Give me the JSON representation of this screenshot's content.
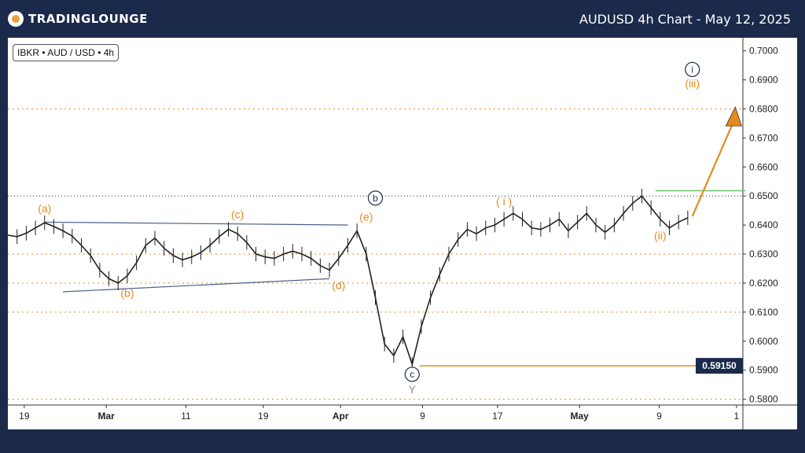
{
  "header": {
    "logo_text": "TRADINGLOUNGE",
    "title": "AUDUSD 4h Chart - May 12, 2025"
  },
  "symbol_badge": "IBKR • AUD / USD • 4h",
  "colors": {
    "background": "#1b2a4a",
    "orange": "#e8891c",
    "navy": "#1b2a4a",
    "trendline": "#4a5f8a",
    "green_line": "#6dbf6d",
    "price": "#222222"
  },
  "chart_data": {
    "type": "line",
    "xlabel": "",
    "ylabel": "",
    "x_ticks": [
      "19",
      "Mar",
      "11",
      "19",
      "Apr",
      "9",
      "17",
      "May",
      "9",
      "1"
    ],
    "y_ticks": [
      "0.7000",
      "0.6900",
      "0.6800",
      "0.6700",
      "0.6600",
      "0.6500",
      "0.6400",
      "0.6300",
      "0.6200",
      "0.6100",
      "0.6000",
      "0.5900",
      "0.5800"
    ],
    "ylim": [
      0.578,
      0.7045
    ],
    "price_label": "0.59150",
    "price_level": 0.5915,
    "series": [
      {
        "values": [
          [
            0,
            0.6365
          ],
          [
            1,
            0.636
          ],
          [
            2,
            0.6372
          ],
          [
            3,
            0.639
          ],
          [
            4,
            0.6408
          ],
          [
            5,
            0.6395
          ],
          [
            6,
            0.638
          ],
          [
            7,
            0.6362
          ],
          [
            8,
            0.633
          ],
          [
            9,
            0.6295
          ],
          [
            10,
            0.6245
          ],
          [
            11,
            0.6215
          ],
          [
            12,
            0.62
          ],
          [
            13,
            0.6225
          ],
          [
            14,
            0.627
          ],
          [
            15,
            0.633
          ],
          [
            16,
            0.6355
          ],
          [
            17,
            0.632
          ],
          [
            18,
            0.6295
          ],
          [
            19,
            0.628
          ],
          [
            20,
            0.629
          ],
          [
            21,
            0.6305
          ],
          [
            22,
            0.633
          ],
          [
            23,
            0.636
          ],
          [
            24,
            0.6385
          ],
          [
            25,
            0.637
          ],
          [
            26,
            0.634
          ],
          [
            27,
            0.63
          ],
          [
            28,
            0.629
          ],
          [
            29,
            0.6285
          ],
          [
            30,
            0.63
          ],
          [
            31,
            0.631
          ],
          [
            32,
            0.63
          ],
          [
            33,
            0.6285
          ],
          [
            34,
            0.626
          ],
          [
            35,
            0.6245
          ],
          [
            36,
            0.6285
          ],
          [
            37,
            0.633
          ],
          [
            38,
            0.638
          ],
          [
            39,
            0.63
          ],
          [
            40,
            0.615
          ],
          [
            41,
            0.599
          ],
          [
            42,
            0.595
          ],
          [
            43,
            0.6015
          ],
          [
            44,
            0.592
          ],
          [
            45,
            0.605
          ],
          [
            46,
            0.615
          ],
          [
            47,
            0.623
          ],
          [
            48,
            0.63
          ],
          [
            49,
            0.635
          ],
          [
            50,
            0.6385
          ],
          [
            51,
            0.637
          ],
          [
            52,
            0.639
          ],
          [
            53,
            0.64
          ],
          [
            54,
            0.642
          ],
          [
            55,
            0.644
          ],
          [
            56,
            0.642
          ],
          [
            57,
            0.639
          ],
          [
            58,
            0.6385
          ],
          [
            59,
            0.64
          ],
          [
            60,
            0.642
          ],
          [
            61,
            0.638
          ],
          [
            62,
            0.641
          ],
          [
            63,
            0.644
          ],
          [
            64,
            0.64
          ],
          [
            65,
            0.6375
          ],
          [
            66,
            0.64
          ],
          [
            67,
            0.644
          ],
          [
            68,
            0.6475
          ],
          [
            69,
            0.65
          ],
          [
            70,
            0.646
          ],
          [
            71,
            0.642
          ],
          [
            72,
            0.639
          ],
          [
            73,
            0.641
          ],
          [
            74,
            0.6425
          ]
        ]
      }
    ],
    "projection": {
      "from": [
        74.5,
        0.643
      ],
      "to": [
        79,
        0.679
      ]
    },
    "green_level": {
      "value": 0.6518,
      "from": 70.5
    },
    "trendlines": [
      {
        "from": [
          4,
          0.641
        ],
        "to": [
          37,
          0.64
        ]
      },
      {
        "from": [
          6,
          0.617
        ],
        "to": [
          35,
          0.6215
        ]
      }
    ],
    "dotted_levels": [
      {
        "value": 0.68,
        "style": "orange"
      },
      {
        "value": 0.65,
        "style": "black"
      },
      {
        "value": 0.63,
        "style": "orange"
      },
      {
        "value": 0.62,
        "style": "orange"
      },
      {
        "value": 0.61,
        "style": "orange"
      },
      {
        "value": 0.58,
        "style": "orange"
      }
    ],
    "annotations": [
      {
        "label": "(a)",
        "x": 4,
        "y": 0.6443,
        "style": "orange"
      },
      {
        "label": "(b)",
        "x": 13,
        "y": 0.6153,
        "style": "orange"
      },
      {
        "label": "(c)",
        "x": 25,
        "y": 0.6423,
        "style": "orange"
      },
      {
        "label": "(d)",
        "x": 36,
        "y": 0.618,
        "style": "orange"
      },
      {
        "label": "(e)",
        "x": 39,
        "y": 0.6415,
        "style": "orange"
      },
      {
        "label": "b",
        "x": 40,
        "y": 0.6482,
        "style": "circle"
      },
      {
        "label": "c",
        "x": 44,
        "y": 0.5875,
        "style": "circle"
      },
      {
        "label": "Y",
        "x": 44,
        "y": 0.582,
        "style": "grey"
      },
      {
        "label": "( i )",
        "x": 54,
        "y": 0.6468,
        "style": "orange"
      },
      {
        "label": "(ii)",
        "x": 71,
        "y": 0.635,
        "style": "orange"
      },
      {
        "label": "(iii)",
        "x": 74.5,
        "y": 0.6875,
        "style": "orange"
      },
      {
        "label": "i",
        "x": 74.5,
        "y": 0.6925,
        "style": "circle"
      }
    ]
  }
}
